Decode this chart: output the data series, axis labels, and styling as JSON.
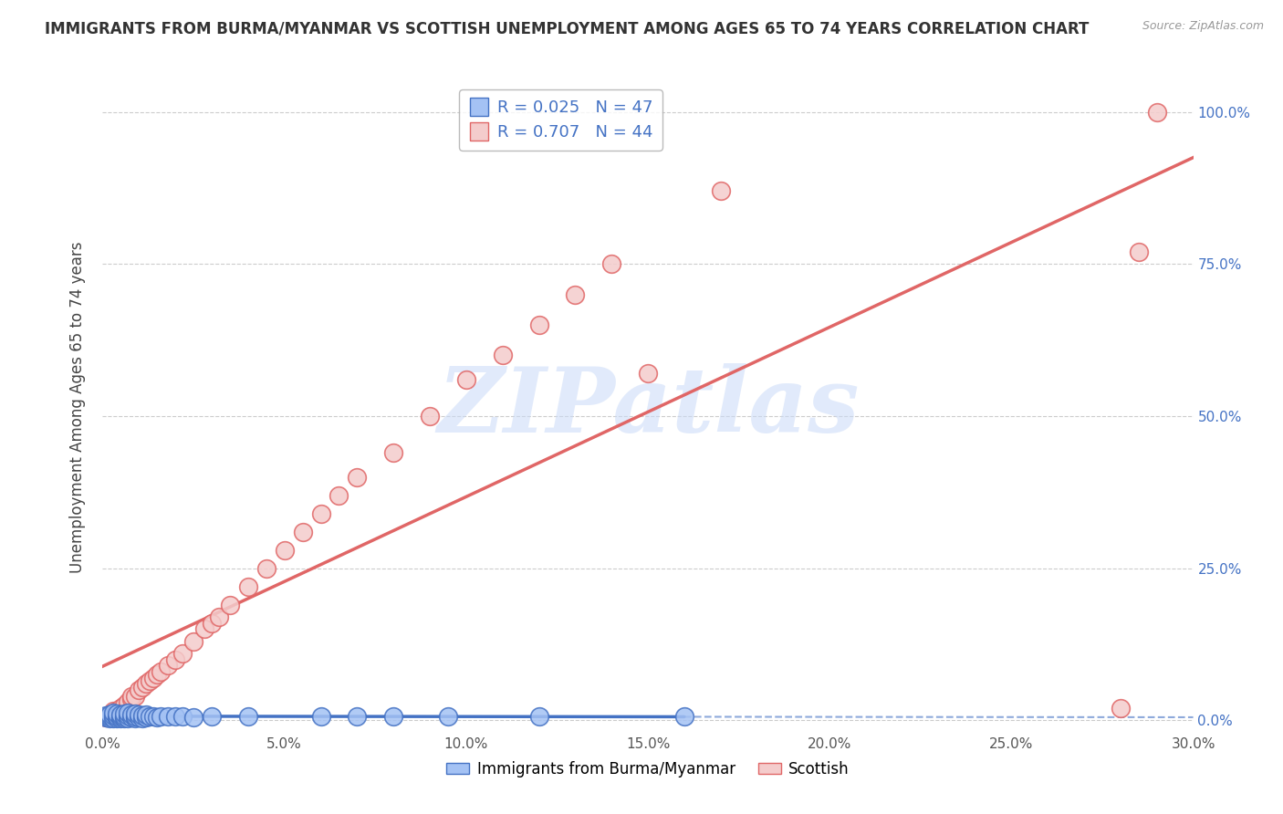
{
  "title": "IMMIGRANTS FROM BURMA/MYANMAR VS SCOTTISH UNEMPLOYMENT AMONG AGES 65 TO 74 YEARS CORRELATION CHART",
  "source": "Source: ZipAtlas.com",
  "ylabel": "Unemployment Among Ages 65 to 74 years",
  "x_ticks": [
    0.0,
    0.05,
    0.1,
    0.15,
    0.2,
    0.25,
    0.3
  ],
  "x_tick_labels": [
    "0.0%",
    "5.0%",
    "10.0%",
    "15.0%",
    "20.0%",
    "25.0%",
    "30.0%"
  ],
  "y_ticks": [
    0.0,
    0.25,
    0.5,
    0.75,
    1.0
  ],
  "y_tick_labels": [
    "0.0%",
    "25.0%",
    "50.0%",
    "75.0%",
    "100.0%"
  ],
  "x_range": [
    0.0,
    0.3
  ],
  "y_range": [
    -0.02,
    1.05
  ],
  "legend_label1": "Immigrants from Burma/Myanmar",
  "legend_label2": "Scottish",
  "R1": 0.025,
  "N1": 47,
  "R2": 0.707,
  "N2": 44,
  "blue_fill": "#a4c2f4",
  "blue_edge": "#4472c4",
  "pink_fill": "#f4cccc",
  "pink_edge": "#e06666",
  "pink_line": "#e06666",
  "blue_line": "#4472c4",
  "watermark_color": "#c9daf8",
  "background_color": "#ffffff",
  "grid_color": "#cccccc",
  "title_color": "#333333",
  "source_color": "#999999",
  "right_axis_color": "#4472c4",
  "blue_x": [
    0.001,
    0.001,
    0.002,
    0.002,
    0.002,
    0.003,
    0.003,
    0.003,
    0.004,
    0.004,
    0.004,
    0.005,
    0.005,
    0.005,
    0.006,
    0.006,
    0.006,
    0.007,
    0.007,
    0.007,
    0.008,
    0.008,
    0.009,
    0.009,
    0.009,
    0.01,
    0.01,
    0.011,
    0.011,
    0.012,
    0.012,
    0.013,
    0.014,
    0.015,
    0.016,
    0.018,
    0.02,
    0.022,
    0.025,
    0.03,
    0.04,
    0.06,
    0.07,
    0.08,
    0.095,
    0.12,
    0.16
  ],
  "blue_y": [
    0.005,
    0.008,
    0.003,
    0.007,
    0.01,
    0.004,
    0.008,
    0.012,
    0.003,
    0.007,
    0.011,
    0.004,
    0.007,
    0.01,
    0.003,
    0.007,
    0.011,
    0.004,
    0.008,
    0.012,
    0.005,
    0.009,
    0.004,
    0.007,
    0.011,
    0.005,
    0.009,
    0.004,
    0.008,
    0.005,
    0.009,
    0.006,
    0.007,
    0.005,
    0.007,
    0.006,
    0.006,
    0.007,
    0.005,
    0.006,
    0.006,
    0.007,
    0.006,
    0.007,
    0.006,
    0.006,
    0.007
  ],
  "pink_x": [
    0.001,
    0.002,
    0.003,
    0.004,
    0.005,
    0.006,
    0.007,
    0.008,
    0.008,
    0.009,
    0.01,
    0.011,
    0.012,
    0.013,
    0.014,
    0.015,
    0.016,
    0.018,
    0.02,
    0.022,
    0.025,
    0.028,
    0.03,
    0.032,
    0.035,
    0.04,
    0.045,
    0.05,
    0.055,
    0.06,
    0.065,
    0.07,
    0.08,
    0.09,
    0.1,
    0.11,
    0.12,
    0.13,
    0.14,
    0.15,
    0.17,
    0.28,
    0.29,
    0.285
  ],
  "pink_y": [
    0.005,
    0.01,
    0.015,
    0.015,
    0.02,
    0.025,
    0.03,
    0.035,
    0.04,
    0.04,
    0.05,
    0.055,
    0.06,
    0.065,
    0.07,
    0.075,
    0.08,
    0.09,
    0.1,
    0.11,
    0.13,
    0.15,
    0.16,
    0.17,
    0.19,
    0.22,
    0.25,
    0.28,
    0.31,
    0.34,
    0.37,
    0.4,
    0.44,
    0.5,
    0.56,
    0.6,
    0.65,
    0.7,
    0.75,
    0.57,
    0.87,
    0.02,
    1.0,
    0.77
  ]
}
